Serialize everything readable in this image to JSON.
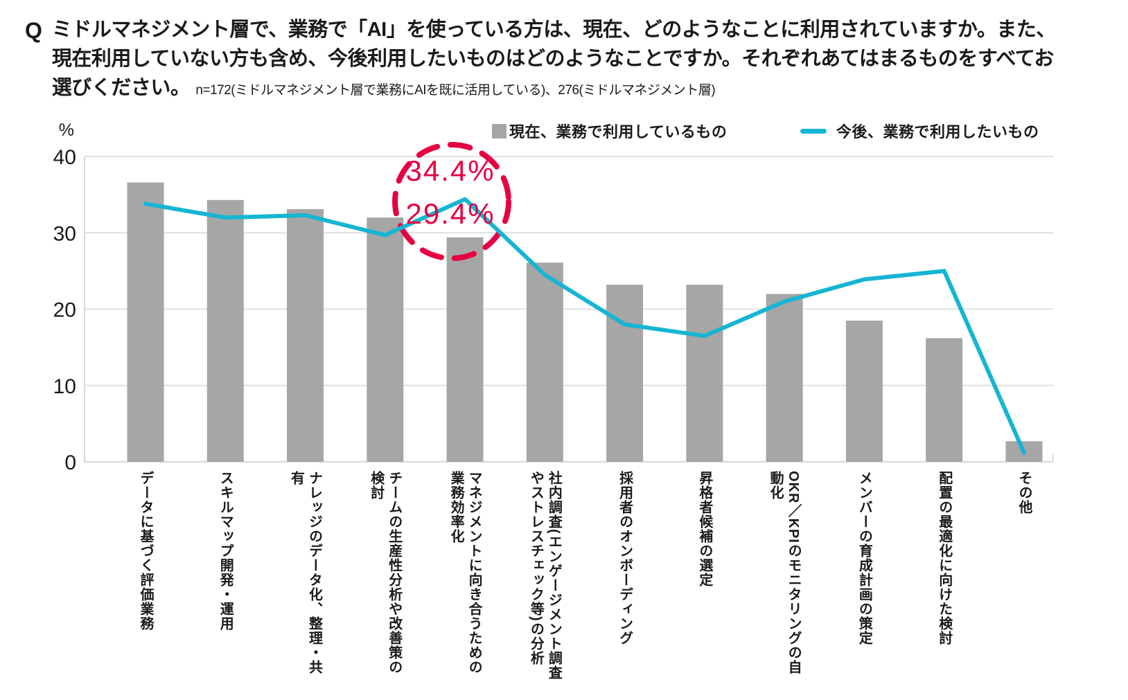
{
  "question": {
    "prefix": "Q",
    "text": "ミドルマネジメント層で、業務で「AI」を使っている方は、現在、どのようなことに利用されていますか。また、現在利用していない方も含め、今後利用したいものはどのようなことですか。それぞれあてはまるものをすべてお選びください。",
    "note": "n=172(ミドルマネジメント層で業務にAIを既に活用している)、276(ミドルマネジメント層)"
  },
  "legend": {
    "current": {
      "label": "現在、業務で利用しているもの",
      "color": "#a6a6a6"
    },
    "future": {
      "label": "今後、業務で利用したいもの",
      "color": "#16b5d3"
    }
  },
  "chart_data": {
    "type": "bar+line",
    "unit_label": "%",
    "ylim": [
      0,
      40
    ],
    "yticks": [
      40,
      30,
      20,
      10,
      0
    ],
    "grid": true,
    "categories": [
      "データに基づく評価業務",
      "スキルマップ開発・運用",
      "ナレッジのデータ化、整理・共有",
      "チームの生産性分析や改善策の検討",
      "マネジメントに向き合うための業務効率化",
      "社内調査(エンゲージメント調査やストレスチェック等)の分析",
      "採用者のオンボーディング",
      "昇格者候補の選定",
      "OKR／KPIのモニタリングの自動化",
      "メンバーの育成計画の策定",
      "配置の最適化に向けた検討",
      "その他"
    ],
    "series": [
      {
        "name": "現在、業務で利用しているもの",
        "type": "bar",
        "color": "#a6a6a6",
        "values": [
          36.6,
          34.3,
          33.1,
          32.0,
          29.4,
          26.1,
          23.2,
          23.2,
          22.0,
          18.5,
          16.2,
          2.7
        ]
      },
      {
        "name": "今後、業務で利用したいもの",
        "type": "line",
        "color": "#16b5d3",
        "values": [
          33.8,
          32.0,
          32.3,
          29.7,
          34.4,
          24.5,
          18.0,
          16.5,
          21.0,
          23.9,
          25.0,
          1.2
        ]
      }
    ],
    "annotation": {
      "shape": "dashed-circle",
      "color": "#e60041",
      "category_index": 4,
      "line_value_label": "34.4%",
      "bar_value_label": "29.4%"
    }
  }
}
